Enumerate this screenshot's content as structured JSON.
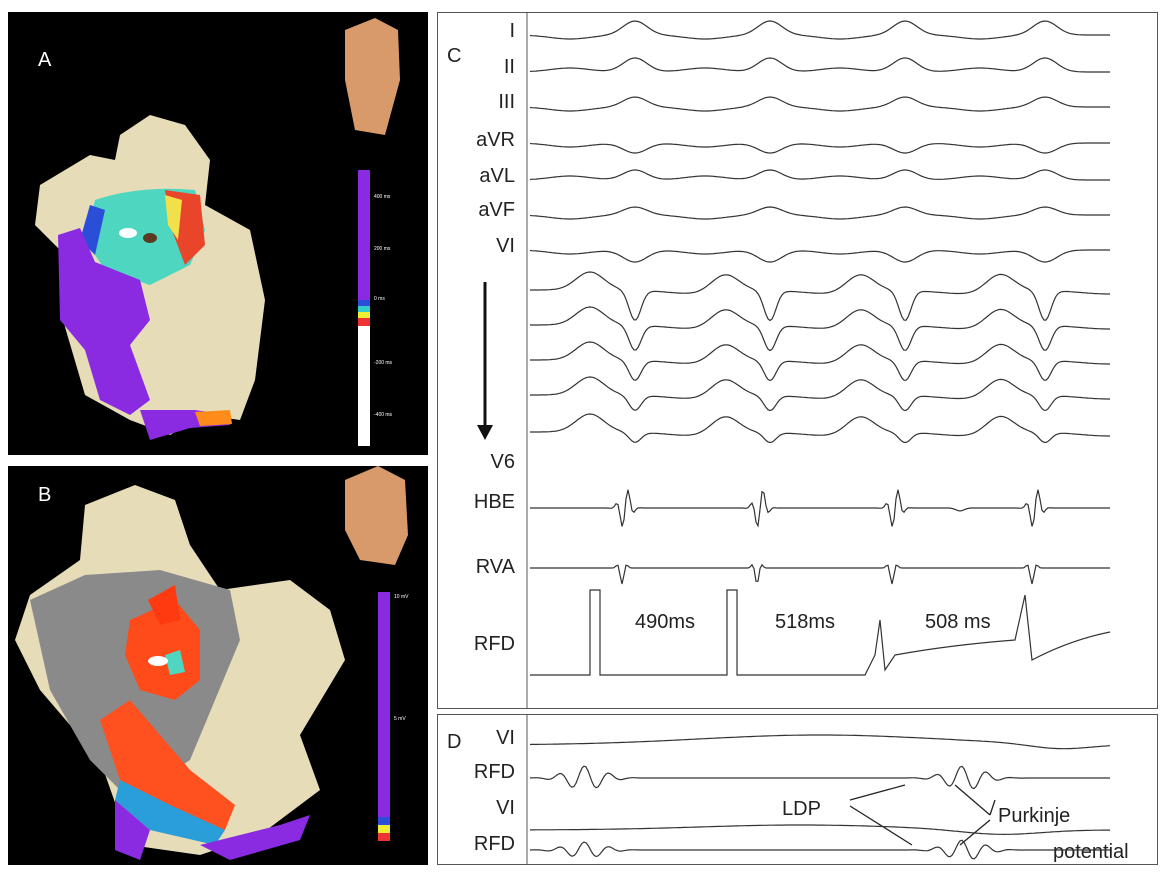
{
  "panels": {
    "A": {
      "label": "A",
      "scale": [
        "400 ms",
        "200 ms",
        "0 ms",
        "-200 ms",
        "-400 ms"
      ]
    },
    "B": {
      "label": "B",
      "scale": [
        "10 mV",
        "5 mV"
      ]
    },
    "C": {
      "label": "C",
      "leads": [
        "I",
        "II",
        "III",
        "aVR",
        "aVL",
        "aVF",
        "VI",
        "V6",
        "HBE",
        "RVA",
        "RFD"
      ],
      "intervals": [
        "490ms",
        "518ms",
        "508 ms"
      ]
    },
    "D": {
      "label": "D",
      "leads": [
        "VI",
        "RFD",
        "VI",
        "RFD"
      ],
      "annotations": [
        "LDP",
        "Purkinje",
        "potential"
      ]
    }
  }
}
